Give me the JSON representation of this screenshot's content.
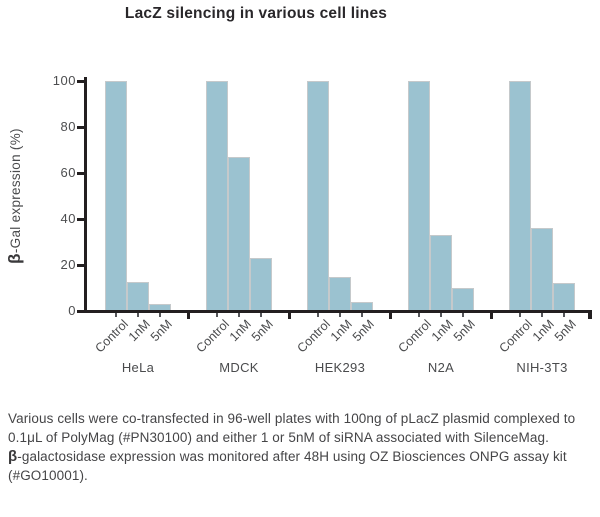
{
  "title": "LacZ silencing in various cell lines",
  "chart_data": {
    "type": "bar",
    "title": "LacZ silencing in various cell lines",
    "ylabel": "β-Gal expression (%)",
    "ylabel_beta": "β",
    "ylabel_rest": "-Gal expression (%)",
    "xlabel": "",
    "ylim": [
      0,
      100
    ],
    "yticks": [
      0,
      20,
      40,
      60,
      80,
      100
    ],
    "grid": false,
    "legend": false,
    "categories": [
      "HeLa",
      "MDCK",
      "HEK293",
      "N2A",
      "NIH-3T3"
    ],
    "bar_labels": [
      "Control",
      "1nM",
      "5nM"
    ],
    "series": [
      {
        "name": "Control",
        "values": [
          100,
          100,
          100,
          100,
          100
        ]
      },
      {
        "name": "1nM",
        "values": [
          12.5,
          67,
          15,
          33,
          36
        ]
      },
      {
        "name": "5nM",
        "values": [
          3,
          23,
          4,
          10,
          12
        ]
      }
    ],
    "bar_color": "#9bc2d0",
    "bar_border_color": "#c5c9cb",
    "axis_color": "#231f20"
  },
  "caption": {
    "para1": "Various cells were co-transfected in 96-well plates with 100ng of pLacZ plasmid complexed to 0.1μL of PolyMag (#PN30100) and either 1 or 5nM of siRNA associated with SilenceMag.",
    "para2_beta": "β",
    "para2_rest": "-galactosidase expression was monitored after 48H using OZ Biosciences ONPG assay kit (#GO10001)."
  }
}
